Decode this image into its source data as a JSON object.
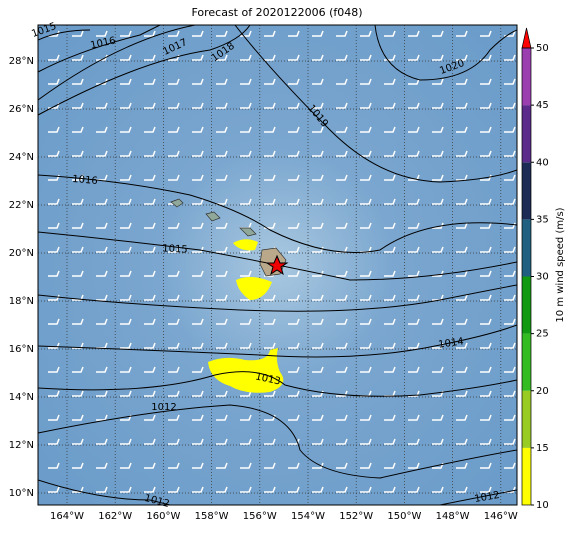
{
  "title": "Forecast of 2020122006 (f048)",
  "map": {
    "lon_ticks": [
      "164°W",
      "162°W",
      "160°W",
      "158°W",
      "156°W",
      "154°W",
      "152°W",
      "150°W",
      "148°W",
      "146°W"
    ],
    "lat_ticks": [
      "28°N",
      "26°N",
      "24°N",
      "22°N",
      "20°N",
      "18°N",
      "16°N",
      "14°N",
      "12°N",
      "10°N"
    ],
    "contour_labels": [
      1015,
      1016,
      1017,
      1018,
      1020,
      1019,
      1016,
      1015,
      1014,
      1013,
      1012,
      1012,
      1012
    ]
  },
  "colorbar": {
    "label": "10 m wind speed (m/s)",
    "ticks": [
      10,
      15,
      20,
      25,
      30,
      35,
      40,
      45,
      50
    ],
    "colors": [
      "#ffff00",
      "#99cc22",
      "#33bb22",
      "#119911",
      "#1f5f7f",
      "#1b2b55",
      "#5b2a8b",
      "#9b3fb0"
    ],
    "extend_color": "#ff0000"
  }
}
